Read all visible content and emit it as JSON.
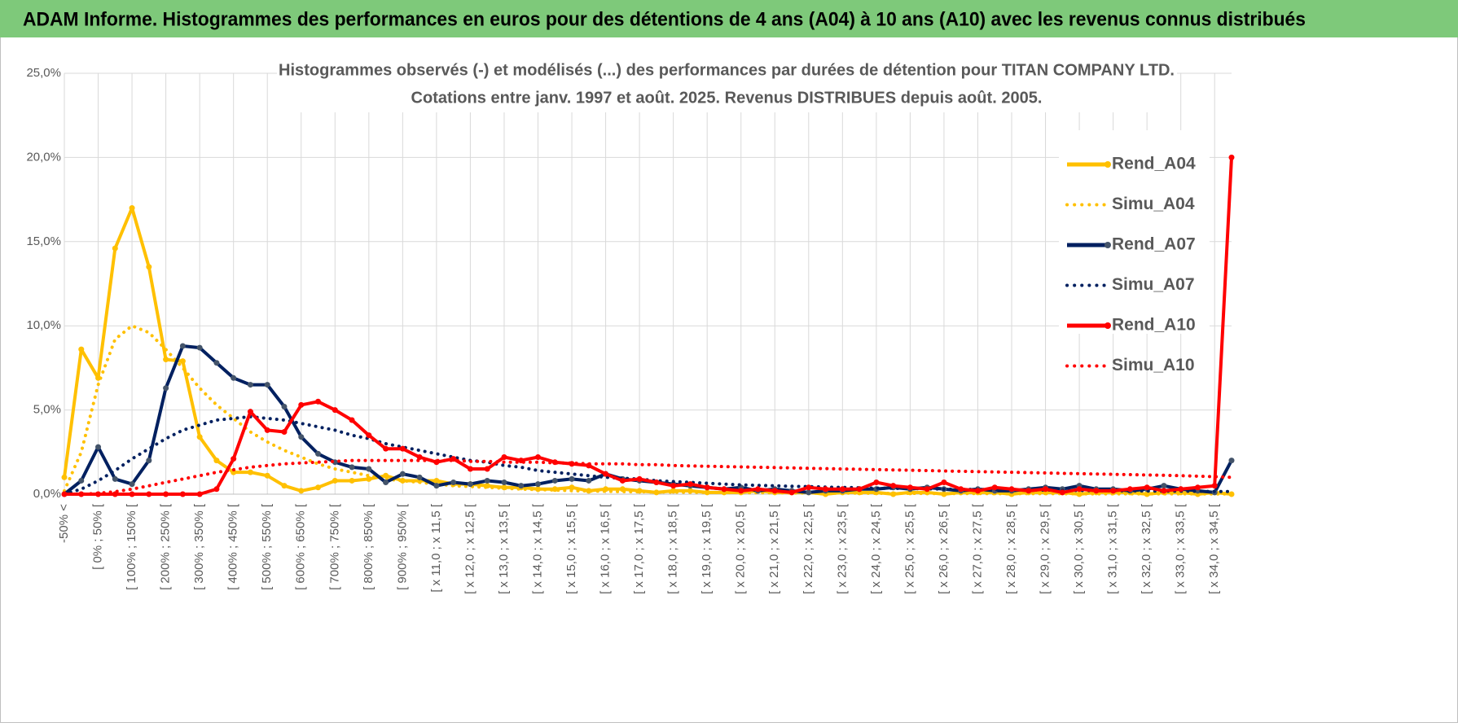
{
  "header": {
    "title": "ADAM Informe. Histogrammes des performances en euros pour des détentions de 4 ans (A04) à 10 ans (A10) avec les revenus connus distribués"
  },
  "chart_data": {
    "type": "line",
    "title": "Histogrammes observés (-) et modélisés (...) des performances par durées de détention pour TITAN COMPANY LTD.",
    "subtitle": "Cotations entre janv. 1997 et août. 2025. Revenus DISTRIBUES depuis août. 2005.",
    "categories": [
      "-50% <",
      null,
      "[ 0% ; 50% [",
      null,
      "[ 100% ; 150% [",
      null,
      "[ 200% ; 250% [",
      null,
      "[ 300% ; 350% [",
      null,
      "[ 400% ; 450% [",
      null,
      "[ 500% ; 550% [",
      null,
      "[ 600% ; 650% [",
      null,
      "[ 700% ; 750% [",
      null,
      "[ 800% ; 850% [",
      null,
      "[ 900% ; 950% [",
      null,
      "[ x 11,0 ; x 11,5 [",
      null,
      "[ x 12,0 ; x 12,5 [",
      null,
      "[ x 13,0 ; x 13,5 [",
      null,
      "[ x 14,0 ; x 14,5 [",
      null,
      "[ x 15,0 ; x 15,5 [",
      null,
      "[ x 16,0 ; x 16,5 [",
      null,
      "[ x 17,0 ; x 17,5 [",
      null,
      "[ x 18,0 ; x 18,5 [",
      null,
      "[ x 19,0 ; x 19,5 [",
      null,
      "[ x 20,0 ; x 20,5 [",
      null,
      "[ x 21,0 ; x 21,5 [",
      null,
      "[ x 22,0 ; x 22,5 [",
      null,
      "[ x 23,0 ; x 23,5 [",
      null,
      "[ x 24,0 ; x 24,5 [",
      null,
      "[ x 25,0 ; x 25,5 [",
      null,
      "[ x 26,0 ; x 26,5 [",
      null,
      "[ x 27,0 ; x 27,5 [",
      null,
      "[ x 28,0 ; x 28,5 [",
      null,
      "[ x 29,0 ; x 29,5 [",
      null,
      "[ x 30,0 ; x 30,5 [",
      null,
      "[ x 31,0 ; x 31,5 [",
      null,
      "[ x 32,0 ; x 32,5 [",
      null,
      "[ x 33,0 ; x 33,5 [",
      null,
      "[ x 34,0 ; x 34,5 [",
      null
    ],
    "series": [
      {
        "name": "Rend_A04",
        "color": "#ffc000",
        "style": "solid",
        "values": [
          1.0,
          8.6,
          6.9,
          14.6,
          17.0,
          13.5,
          8.0,
          7.9,
          3.4,
          2.0,
          1.3,
          1.3,
          1.1,
          0.5,
          0.2,
          0.4,
          0.8,
          0.8,
          0.9,
          1.1,
          0.8,
          0.8,
          0.8,
          0.6,
          0.6,
          0.5,
          0.4,
          0.4,
          0.3,
          0.3,
          0.4,
          0.2,
          0.3,
          0.3,
          0.2,
          0.1,
          0.2,
          0.2,
          0.1,
          0.1,
          0.1,
          0.2,
          0.1,
          0.1,
          0.1,
          0.0,
          0.1,
          0.1,
          0.1,
          0.0,
          0.1,
          0.1,
          0.0,
          0.1,
          0.1,
          0.1,
          0.0,
          0.1,
          0.1,
          0.1,
          0.0,
          0.1,
          0.1,
          0.1,
          0.0,
          0.1,
          0.1,
          0.0,
          0.1,
          0.0
        ]
      },
      {
        "name": "Simu_A04",
        "color": "#ffc000",
        "style": "dotted",
        "values": [
          0.2,
          2.5,
          6.5,
          9.2,
          10.0,
          9.6,
          8.6,
          7.5,
          6.3,
          5.3,
          4.5,
          3.7,
          3.1,
          2.6,
          2.2,
          1.8,
          1.5,
          1.3,
          1.1,
          0.9,
          0.8,
          0.7,
          0.6,
          0.5,
          0.45,
          0.4,
          0.35,
          0.3,
          0.27,
          0.24,
          0.21,
          0.19,
          0.17,
          0.15,
          0.14,
          0.13,
          0.12,
          0.11,
          0.1,
          0.09,
          0.09,
          0.08,
          0.08,
          0.07,
          0.07,
          0.06,
          0.06,
          0.06,
          0.05,
          0.05,
          0.05,
          0.04,
          0.04,
          0.04,
          0.04,
          0.03,
          0.03,
          0.03,
          0.03,
          0.03,
          0.02,
          0.02,
          0.02,
          0.02,
          0.02,
          0.02,
          0.02,
          0.02,
          0.01,
          0.01
        ]
      },
      {
        "name": "Rend_A07",
        "color": "#002060",
        "style": "solid",
        "values": [
          0.0,
          0.8,
          2.8,
          0.9,
          0.6,
          2.0,
          6.3,
          8.8,
          8.7,
          7.8,
          6.9,
          6.5,
          6.5,
          5.2,
          3.4,
          2.4,
          1.9,
          1.6,
          1.5,
          0.7,
          1.2,
          1.0,
          0.5,
          0.7,
          0.6,
          0.8,
          0.7,
          0.5,
          0.6,
          0.8,
          0.9,
          0.8,
          1.2,
          0.9,
          0.8,
          0.7,
          0.6,
          0.5,
          0.4,
          0.3,
          0.4,
          0.2,
          0.3,
          0.2,
          0.1,
          0.2,
          0.2,
          0.3,
          0.3,
          0.4,
          0.3,
          0.4,
          0.3,
          0.2,
          0.3,
          0.2,
          0.2,
          0.3,
          0.4,
          0.3,
          0.5,
          0.3,
          0.3,
          0.2,
          0.3,
          0.5,
          0.3,
          0.2,
          0.1,
          2.0
        ]
      },
      {
        "name": "Simu_A07",
        "color": "#002060",
        "style": "dotted",
        "values": [
          0.0,
          0.3,
          0.8,
          1.4,
          2.1,
          2.7,
          3.3,
          3.8,
          4.1,
          4.4,
          4.5,
          4.6,
          4.5,
          4.4,
          4.2,
          4.0,
          3.8,
          3.5,
          3.3,
          3.0,
          2.8,
          2.6,
          2.4,
          2.2,
          2.0,
          1.9,
          1.7,
          1.6,
          1.4,
          1.3,
          1.2,
          1.1,
          1.0,
          0.95,
          0.9,
          0.8,
          0.75,
          0.7,
          0.65,
          0.6,
          0.55,
          0.52,
          0.5,
          0.47,
          0.45,
          0.42,
          0.4,
          0.38,
          0.36,
          0.35,
          0.33,
          0.32,
          0.3,
          0.29,
          0.28,
          0.27,
          0.26,
          0.25,
          0.24,
          0.23,
          0.22,
          0.21,
          0.2,
          0.2,
          0.19,
          0.18,
          0.18,
          0.17,
          0.16,
          0.16
        ]
      },
      {
        "name": "Rend_A10",
        "color": "#ff0000",
        "style": "solid",
        "values": [
          0.0,
          0.0,
          0.0,
          0.0,
          0.0,
          0.0,
          0.0,
          0.0,
          0.0,
          0.3,
          2.1,
          4.9,
          3.8,
          3.7,
          5.3,
          5.5,
          5.0,
          4.4,
          3.5,
          2.7,
          2.7,
          2.2,
          1.9,
          2.1,
          1.5,
          1.5,
          2.2,
          2.0,
          2.2,
          1.9,
          1.8,
          1.7,
          1.2,
          0.8,
          0.9,
          0.7,
          0.5,
          0.6,
          0.4,
          0.3,
          0.2,
          0.3,
          0.2,
          0.1,
          0.4,
          0.3,
          0.3,
          0.3,
          0.7,
          0.5,
          0.4,
          0.3,
          0.7,
          0.3,
          0.2,
          0.4,
          0.3,
          0.2,
          0.3,
          0.1,
          0.3,
          0.2,
          0.2,
          0.3,
          0.4,
          0.2,
          0.3,
          0.4,
          0.5,
          20.0
        ]
      },
      {
        "name": "Simu_A10",
        "color": "#ff0000",
        "style": "dotted",
        "values": [
          0,
          0,
          0.05,
          0.15,
          0.3,
          0.5,
          0.7,
          0.9,
          1.1,
          1.3,
          1.45,
          1.6,
          1.7,
          1.8,
          1.85,
          1.9,
          1.95,
          2.0,
          2.0,
          2.0,
          2.0,
          2.0,
          2.0,
          2.0,
          1.95,
          1.95,
          1.9,
          1.9,
          1.9,
          1.85,
          1.85,
          1.8,
          1.8,
          1.8,
          1.75,
          1.75,
          1.7,
          1.68,
          1.66,
          1.64,
          1.62,
          1.6,
          1.58,
          1.56,
          1.54,
          1.52,
          1.5,
          1.48,
          1.46,
          1.44,
          1.42,
          1.4,
          1.38,
          1.36,
          1.34,
          1.32,
          1.3,
          1.28,
          1.26,
          1.24,
          1.22,
          1.2,
          1.18,
          1.16,
          1.14,
          1.12,
          1.1,
          1.07,
          1.04,
          1.0
        ]
      }
    ],
    "ylim": [
      0,
      25
    ],
    "yticks": [
      {
        "value": 0,
        "label": "0,0%"
      },
      {
        "value": 5,
        "label": "5,0%"
      },
      {
        "value": 10,
        "label": "10,0%"
      },
      {
        "value": 15,
        "label": "15,0%"
      },
      {
        "value": 20,
        "label": "20,0%"
      },
      {
        "value": 25,
        "label": "25,0%"
      }
    ],
    "grid": true,
    "legend": "right"
  }
}
